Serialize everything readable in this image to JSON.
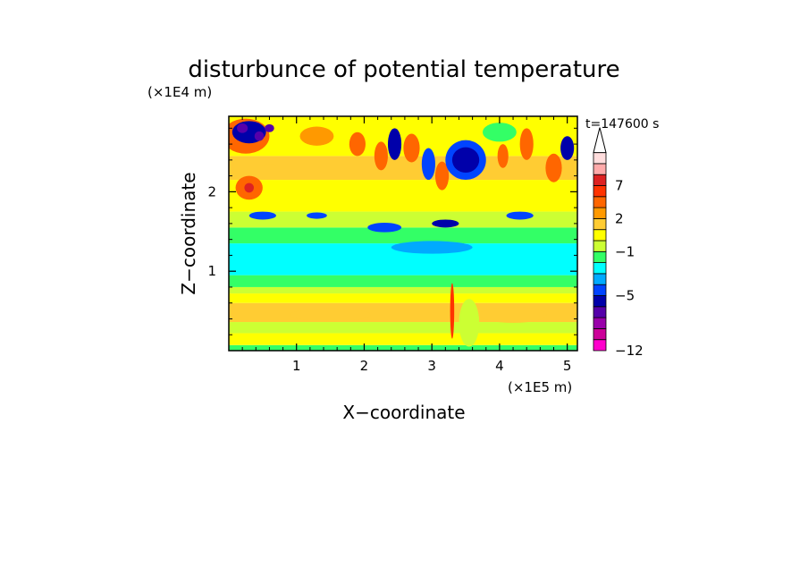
{
  "chart_data": {
    "type": "heatmap",
    "title": "disturbunce of potential temperature",
    "xlabel": "X−coordinate",
    "ylabel": "Z−coordinate",
    "x_unit": "(×1E5 m)",
    "y_unit": "(×1E4 m)",
    "time_label": "t=147600 s",
    "xlim": [
      0,
      5.15
    ],
    "ylim": [
      0,
      2.95
    ],
    "x_ticks": [
      1,
      2,
      3,
      4,
      5
    ],
    "x_tick_labels": [
      "1",
      "2",
      "3",
      "4",
      "5"
    ],
    "y_ticks": [
      1,
      2
    ],
    "y_tick_labels": [
      "1",
      "2"
    ],
    "colorbar": {
      "bins": [
        {
          "color": "#ff00cc"
        },
        {
          "color": "#cc0099"
        },
        {
          "color": "#9900aa"
        },
        {
          "color": "#5500aa"
        },
        {
          "color": "#0000aa"
        },
        {
          "color": "#0044ff"
        },
        {
          "color": "#00aaff"
        },
        {
          "color": "#00ffff"
        },
        {
          "color": "#33ff66"
        },
        {
          "color": "#ccff33"
        },
        {
          "color": "#ffff00"
        },
        {
          "color": "#ffcc33"
        },
        {
          "color": "#ff9900"
        },
        {
          "color": "#ff6600"
        },
        {
          "color": "#ff3300"
        },
        {
          "color": "#dd2222"
        },
        {
          "color": "#ffaaaa"
        },
        {
          "color": "#ffdddd"
        }
      ],
      "extend_max": true,
      "tick_labels": [
        {
          "label": "7",
          "bin": 15
        },
        {
          "label": "2",
          "bin": 12
        },
        {
          "label": "−1",
          "bin": 9
        },
        {
          "label": "−5",
          "bin": 5
        },
        {
          "label": "−12",
          "bin": 0
        }
      ]
    },
    "field": {
      "bands": [
        {
          "z": [
            0.0,
            0.07
          ],
          "color": "#33ff66"
        },
        {
          "z": [
            0.07,
            0.22
          ],
          "color": "#ffff00"
        },
        {
          "z": [
            0.22,
            0.36
          ],
          "color": "#ccff33"
        },
        {
          "z": [
            0.36,
            0.6
          ],
          "color": "#ffcc33"
        },
        {
          "z": [
            0.6,
            0.72
          ],
          "color": "#ffff00"
        },
        {
          "z": [
            0.72,
            0.8
          ],
          "color": "#ccff33"
        },
        {
          "z": [
            0.8,
            0.95
          ],
          "color": "#33ff66"
        },
        {
          "z": [
            0.95,
            1.35
          ],
          "color": "#00ffff"
        },
        {
          "z": [
            1.35,
            1.55
          ],
          "color": "#33ff66"
        },
        {
          "z": [
            1.55,
            1.75
          ],
          "color": "#ccff33"
        },
        {
          "z": [
            1.75,
            2.15
          ],
          "color": "#ffff00"
        },
        {
          "z": [
            2.15,
            2.45
          ],
          "color": "#ffcc33"
        },
        {
          "z": [
            2.45,
            2.95
          ],
          "color": "#ffff00"
        }
      ],
      "blobs": [
        {
          "x": 0.25,
          "z": 2.7,
          "rx": 0.35,
          "rz": 0.22,
          "color": "#ff6600"
        },
        {
          "x": 0.3,
          "z": 2.75,
          "rx": 0.25,
          "rz": 0.14,
          "color": "#0000aa"
        },
        {
          "x": 0.2,
          "z": 2.8,
          "rx": 0.08,
          "rz": 0.06,
          "color": "#5500aa"
        },
        {
          "x": 0.45,
          "z": 2.7,
          "rx": 0.07,
          "rz": 0.06,
          "color": "#5500aa"
        },
        {
          "x": 0.6,
          "z": 2.8,
          "rx": 0.07,
          "rz": 0.05,
          "color": "#5500aa"
        },
        {
          "x": 0.3,
          "z": 2.05,
          "rx": 0.2,
          "rz": 0.15,
          "color": "#ff6600"
        },
        {
          "x": 0.3,
          "z": 2.05,
          "rx": 0.07,
          "rz": 0.06,
          "color": "#dd2222"
        },
        {
          "x": 0.6,
          "z": 2.25,
          "rx": 0.15,
          "rz": 0.1,
          "color": "#ffcc33"
        },
        {
          "x": 1.3,
          "z": 2.7,
          "rx": 0.25,
          "rz": 0.12,
          "color": "#ff9900"
        },
        {
          "x": 1.9,
          "z": 2.6,
          "rx": 0.12,
          "rz": 0.15,
          "color": "#ff6600"
        },
        {
          "x": 2.25,
          "z": 2.45,
          "rx": 0.1,
          "rz": 0.18,
          "color": "#ff6600"
        },
        {
          "x": 2.45,
          "z": 2.6,
          "rx": 0.1,
          "rz": 0.2,
          "color": "#0000aa"
        },
        {
          "x": 2.7,
          "z": 2.55,
          "rx": 0.12,
          "rz": 0.18,
          "color": "#ff6600"
        },
        {
          "x": 2.95,
          "z": 2.35,
          "rx": 0.1,
          "rz": 0.2,
          "color": "#0044ff"
        },
        {
          "x": 3.15,
          "z": 2.2,
          "rx": 0.1,
          "rz": 0.18,
          "color": "#ff6600"
        },
        {
          "x": 3.5,
          "z": 2.4,
          "rx": 0.3,
          "rz": 0.25,
          "color": "#0044ff"
        },
        {
          "x": 3.5,
          "z": 2.4,
          "rx": 0.2,
          "rz": 0.16,
          "color": "#0000aa"
        },
        {
          "x": 4.0,
          "z": 2.75,
          "rx": 0.25,
          "rz": 0.12,
          "color": "#33ff66"
        },
        {
          "x": 4.05,
          "z": 2.45,
          "rx": 0.08,
          "rz": 0.15,
          "color": "#ff6600"
        },
        {
          "x": 4.4,
          "z": 2.6,
          "rx": 0.1,
          "rz": 0.2,
          "color": "#ff6600"
        },
        {
          "x": 4.8,
          "z": 2.3,
          "rx": 0.12,
          "rz": 0.18,
          "color": "#ff6600"
        },
        {
          "x": 5.0,
          "z": 2.55,
          "rx": 0.1,
          "rz": 0.15,
          "color": "#0000aa"
        },
        {
          "x": 0.5,
          "z": 1.7,
          "rx": 0.2,
          "rz": 0.05,
          "color": "#0044ff"
        },
        {
          "x": 1.3,
          "z": 1.7,
          "rx": 0.15,
          "rz": 0.04,
          "color": "#0044ff"
        },
        {
          "x": 2.3,
          "z": 1.55,
          "rx": 0.25,
          "rz": 0.06,
          "color": "#0044ff"
        },
        {
          "x": 3.2,
          "z": 1.6,
          "rx": 0.2,
          "rz": 0.05,
          "color": "#0000aa"
        },
        {
          "x": 4.3,
          "z": 1.7,
          "rx": 0.2,
          "rz": 0.05,
          "color": "#0044ff"
        },
        {
          "x": 3.0,
          "z": 1.3,
          "rx": 0.6,
          "rz": 0.08,
          "color": "#00aaff"
        },
        {
          "x": 3.3,
          "z": 0.5,
          "rx": 0.03,
          "rz": 0.35,
          "color": "#ff3300"
        },
        {
          "x": 3.55,
          "z": 0.35,
          "rx": 0.15,
          "rz": 0.3,
          "color": "#ccff33"
        },
        {
          "x": 4.2,
          "z": 0.45,
          "rx": 0.5,
          "rz": 0.1,
          "color": "#ffcc33"
        },
        {
          "x": 1.5,
          "z": 0.45,
          "rx": 0.6,
          "rz": 0.08,
          "color": "#ffcc33"
        }
      ]
    }
  }
}
